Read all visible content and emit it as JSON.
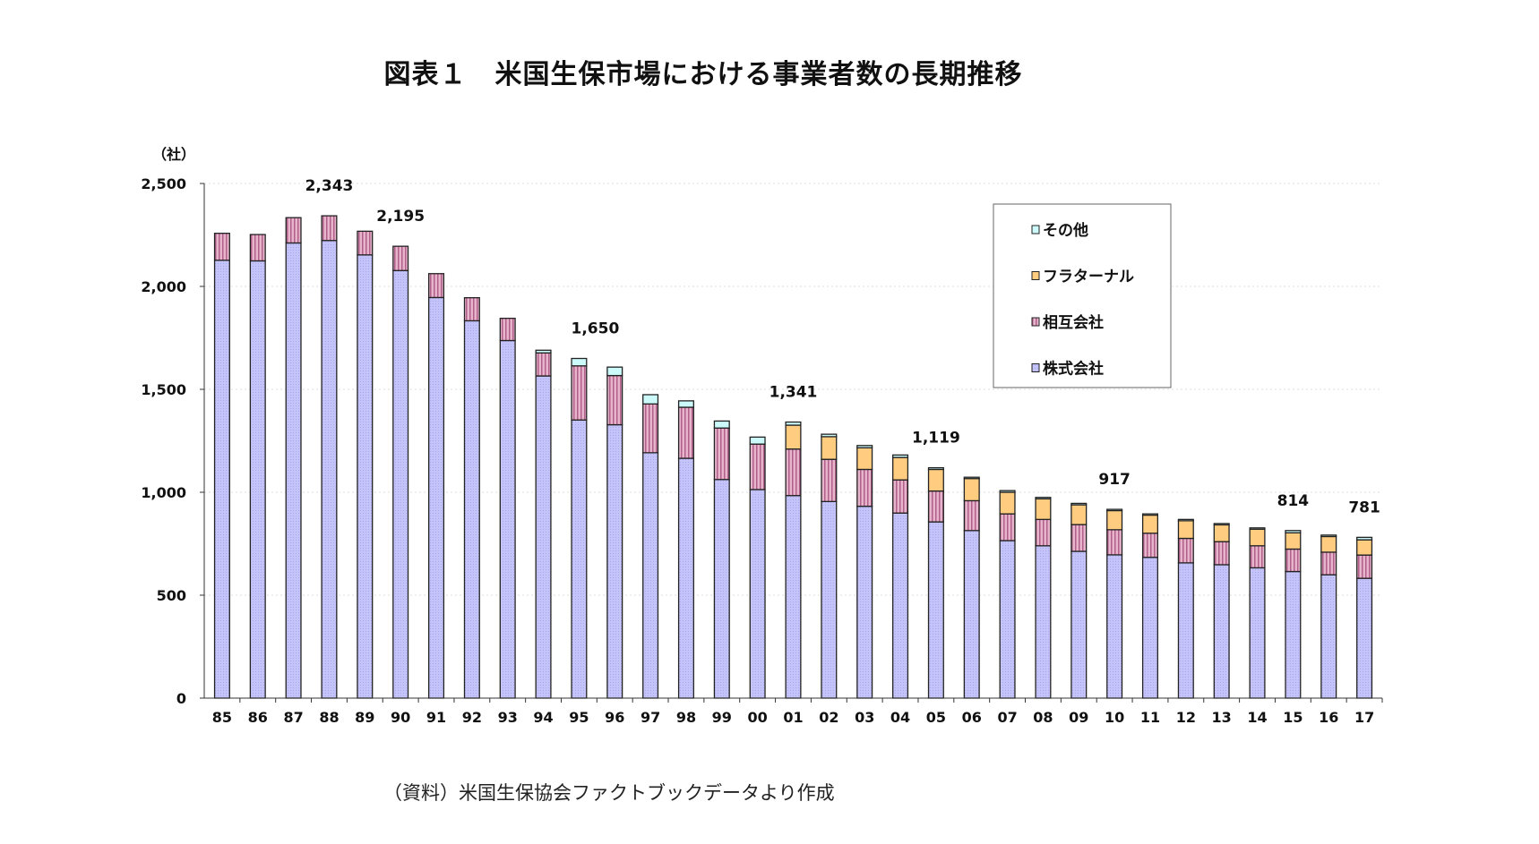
{
  "title": "図表１　米国生保市場における事業者数の長期推移",
  "source": "（資料）米国生保協会ファクトブックデータより作成",
  "chart_data": {
    "type": "bar",
    "stacked": true,
    "title": "図表１　米国生保市場における事業者数の長期推移",
    "ylabel": "（社）",
    "xlabel": "",
    "ylim": [
      0,
      2500
    ],
    "yticks": [
      0,
      500,
      1000,
      1500,
      2000,
      2500
    ],
    "ytick_labels": [
      "0",
      "500",
      "1,000",
      "1,500",
      "2,000",
      "2,500"
    ],
    "grid": true,
    "legend_position": "top-right",
    "categories": [
      "85",
      "86",
      "87",
      "88",
      "89",
      "90",
      "91",
      "92",
      "93",
      "94",
      "95",
      "96",
      "97",
      "98",
      "99",
      "00",
      "01",
      "02",
      "03",
      "04",
      "05",
      "06",
      "07",
      "08",
      "09",
      "10",
      "11",
      "12",
      "13",
      "14",
      "15",
      "16",
      "17"
    ],
    "series": [
      {
        "name": "株式会社",
        "color": "#c4c4fa",
        "values": [
          2127,
          2124,
          2211,
          2223,
          2153,
          2077,
          1946,
          1833,
          1737,
          1565,
          1351,
          1328,
          1192,
          1165,
          1062,
          1013,
          984,
          955,
          932,
          899,
          856,
          814,
          765,
          740,
          713,
          696,
          684,
          657,
          648,
          633,
          615,
          599,
          582
        ]
      },
      {
        "name": "相互会社",
        "color": "#d690b4",
        "values": [
          131,
          128,
          123,
          120,
          115,
          118,
          116,
          112,
          108,
          112,
          263,
          239,
          237,
          248,
          250,
          221,
          226,
          205,
          179,
          161,
          150,
          145,
          130,
          128,
          130,
          122,
          117,
          119,
          112,
          107,
          109,
          110,
          113
        ]
      },
      {
        "name": "フラターナル",
        "color": "#ffcc80",
        "values": [
          0,
          0,
          0,
          0,
          0,
          0,
          0,
          0,
          0,
          0,
          0,
          0,
          0,
          0,
          0,
          0,
          116,
          110,
          105,
          109,
          105,
          108,
          105,
          100,
          96,
          94,
          89,
          87,
          83,
          81,
          79,
          76,
          74
        ]
      },
      {
        "name": "その他",
        "color": "#ccfafa",
        "values": [
          0,
          0,
          0,
          0,
          0,
          0,
          0,
          0,
          0,
          13,
          36,
          41,
          45,
          31,
          34,
          34,
          15,
          12,
          11,
          12,
          8,
          6,
          8,
          7,
          7,
          5,
          5,
          5,
          5,
          6,
          11,
          7,
          12
        ]
      }
    ],
    "annotations": [
      {
        "category": "88",
        "text": "2,343"
      },
      {
        "category": "90",
        "text": "2,195"
      },
      {
        "category": "95",
        "text": "1,650"
      },
      {
        "category": "01",
        "text": "1,341"
      },
      {
        "category": "05",
        "text": "1,119"
      },
      {
        "category": "10",
        "text": "917"
      },
      {
        "category": "15",
        "text": "814"
      },
      {
        "category": "17",
        "text": "781"
      }
    ]
  }
}
